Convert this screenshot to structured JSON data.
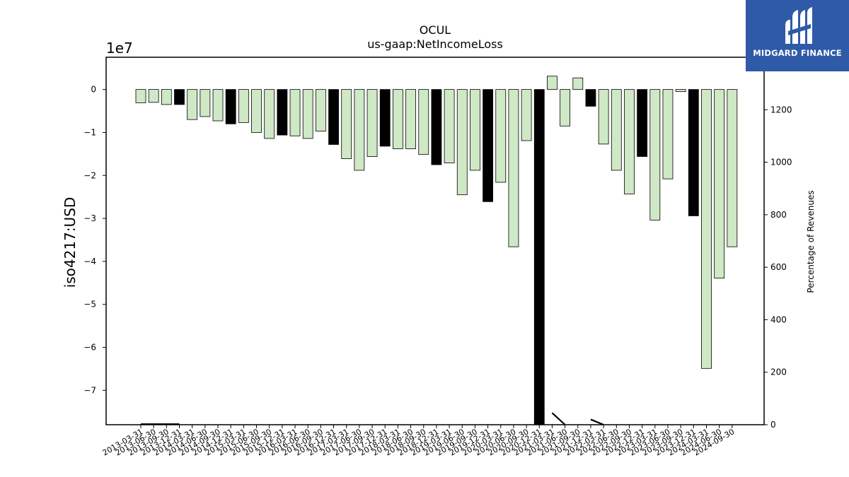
{
  "brand": {
    "name": "MIDGARD FINANCE",
    "accent": "#2f5aa8"
  },
  "colors": {
    "bar_light": "#cfe8c5",
    "bar_dark": "#000000",
    "line": "#000000"
  },
  "chart_data": {
    "type": "bar",
    "title": "OCUL",
    "subtitle": "us-gaap:NetIncomeLoss",
    "ylabel": "iso4217:USD",
    "y2label": "Percentage of Revenues",
    "y_scale_label": "1e7",
    "ylim": [
      -78000000,
      7500000
    ],
    "y2lim": [
      0,
      1400
    ],
    "yticks": [
      0,
      -1,
      -2,
      -3,
      -4,
      -5,
      -6,
      -7
    ],
    "y2ticks": [
      0,
      200,
      400,
      600,
      800,
      1000,
      1200
    ],
    "categories": [
      "2013-03-31",
      "2013-06-30",
      "2013-09-30",
      "2013-12-31",
      "2014-03-31",
      "2014-06-30",
      "2014-09-30",
      "2014-12-31",
      "2015-03-31",
      "2015-06-30",
      "2015-09-30",
      "2015-12-31",
      "2016-03-31",
      "2016-06-30",
      "2016-09-30",
      "2016-12-31",
      "2017-03-31",
      "2017-06-30",
      "2017-09-30",
      "2017-12-31",
      "2018-03-31",
      "2018-06-30",
      "2018-09-30",
      "2018-12-31",
      "2019-03-31",
      "2019-06-30",
      "2019-09-30",
      "2019-12-31",
      "2020-03-31",
      "2020-06-30",
      "2020-09-30",
      "2020-12-31",
      "2021-03-31",
      "2021-06-30",
      "2021-09-30",
      "2021-12-31",
      "2022-03-31",
      "2022-06-30",
      "2022-09-30",
      "2022-12-31",
      "2023-03-31",
      "2023-06-30",
      "2023-09-30",
      "2023-12-31",
      "2024-03-31",
      "2024-06-30",
      "2024-09-30"
    ],
    "series": [
      {
        "type": "bar",
        "values": [
          -3100000,
          -3000000,
          -3500000,
          -3500000,
          -7000000,
          -6300000,
          -7300000,
          -8000000,
          -7700000,
          -10000000,
          -11400000,
          -10600000,
          -10800000,
          -11400000,
          -9700000,
          -12800000,
          -16100000,
          -18800000,
          -15600000,
          -13200000,
          -13800000,
          -13800000,
          -15100000,
          -17500000,
          -17100000,
          -24500000,
          -18800000,
          -26100000,
          -21600000,
          -36600000,
          -11900000,
          -78000000,
          3100000,
          -8500000,
          2700000,
          -3900000,
          -12700000,
          -18800000,
          -24300000,
          -15600000,
          -30400000,
          -20800000,
          -500000,
          -29400000,
          -64900000,
          -43900000,
          -36600000
        ],
        "dark": [
          false,
          false,
          false,
          true,
          false,
          false,
          false,
          true,
          false,
          false,
          false,
          true,
          false,
          false,
          false,
          true,
          false,
          false,
          false,
          true,
          false,
          false,
          false,
          true,
          false,
          false,
          false,
          true,
          false,
          false,
          false,
          true,
          false,
          false,
          false,
          true,
          false,
          false,
          false,
          true,
          false,
          false,
          false,
          true,
          false,
          false,
          false
        ]
      },
      {
        "type": "line",
        "axis": "right",
        "values": [
          2,
          2,
          2,
          2,
          null,
          null,
          null,
          null,
          null,
          null,
          null,
          null,
          null,
          null,
          null,
          null,
          null,
          null,
          null,
          null,
          null,
          null,
          null,
          null,
          null,
          null,
          null,
          null,
          null,
          null,
          null,
          null,
          45,
          0,
          null,
          20,
          0,
          null,
          null,
          null,
          null,
          null,
          null,
          null,
          null,
          null,
          null
        ]
      }
    ]
  }
}
